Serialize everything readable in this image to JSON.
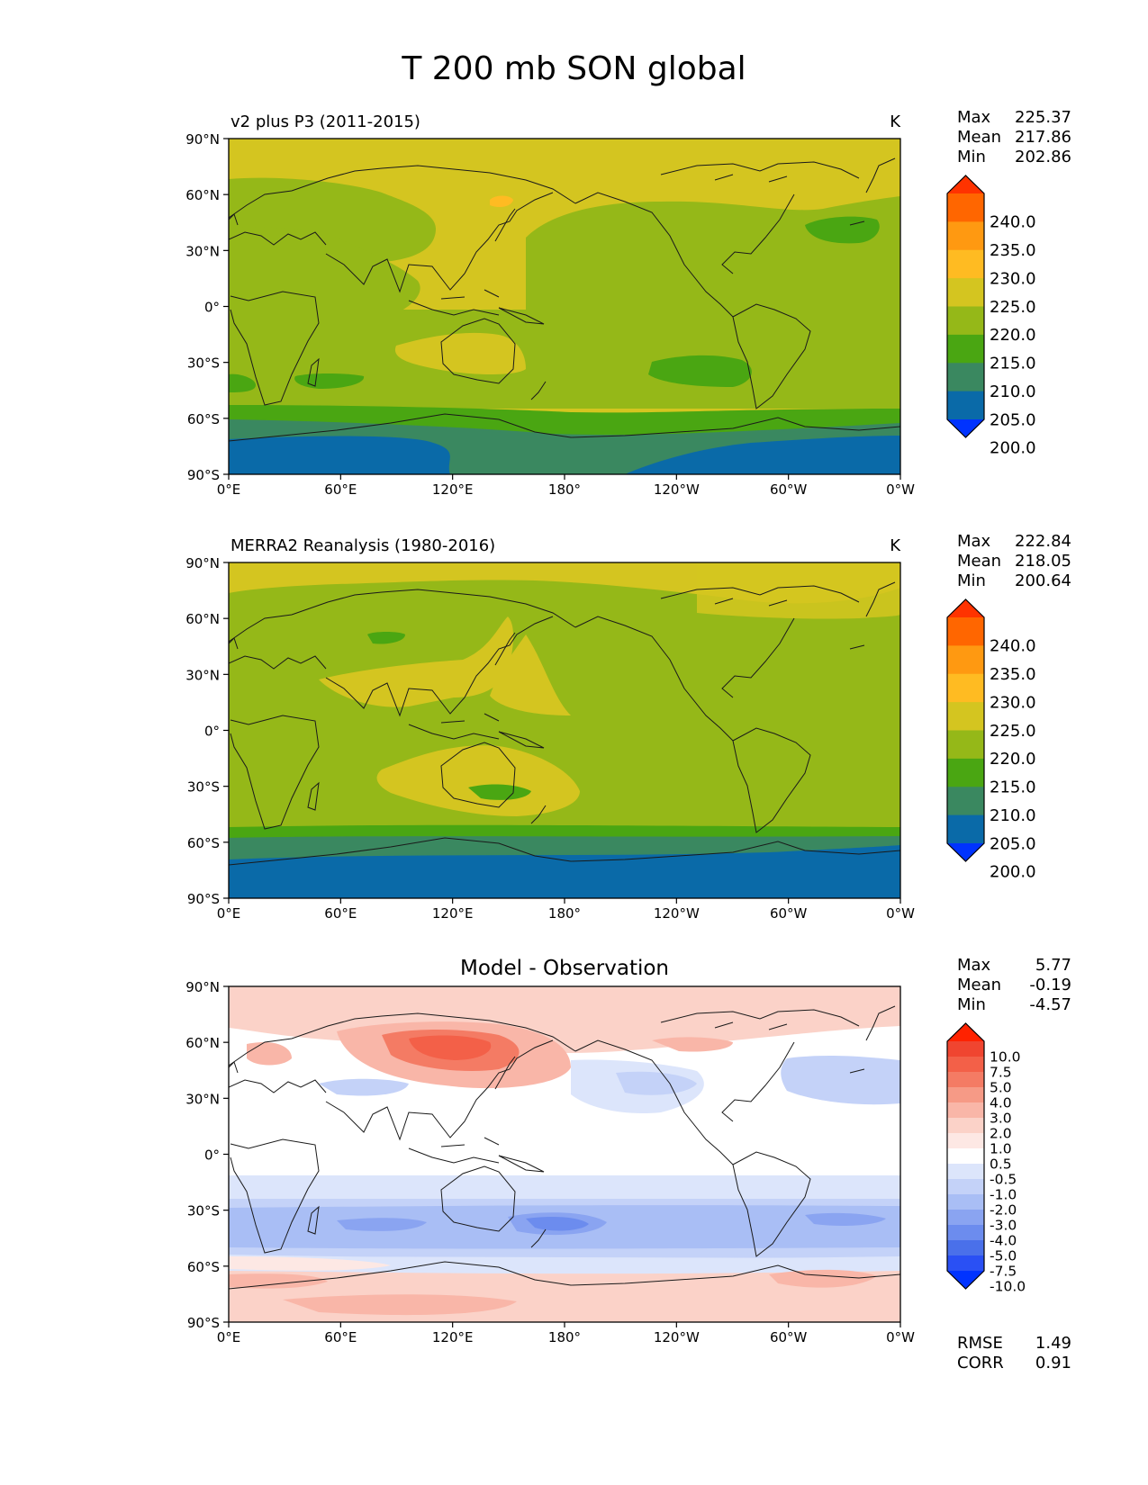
{
  "figure": {
    "title": "T 200 mb SON global"
  },
  "axes": {
    "lat_ticks": [
      "90°N",
      "60°N",
      "30°N",
      "0°",
      "30°S",
      "60°S",
      "90°S"
    ],
    "lon_ticks": [
      "0°E",
      "60°E",
      "120°E",
      "180°",
      "120°W",
      "60°W",
      "0°W"
    ]
  },
  "panels": [
    {
      "id": "model",
      "title_left": "v2 plus P3 (2011-2015)",
      "title_center": "",
      "units": "K",
      "stats": [
        {
          "label": "Max",
          "value": "225.37"
        },
        {
          "label": "Mean",
          "value": "217.86"
        },
        {
          "label": "Min",
          "value": "202.86"
        }
      ],
      "extra_stats": []
    },
    {
      "id": "obs",
      "title_left": "MERRA2 Reanalysis (1980-2016)",
      "title_center": "",
      "units": "K",
      "stats": [
        {
          "label": "Max",
          "value": "222.84"
        },
        {
          "label": "Mean",
          "value": "218.05"
        },
        {
          "label": "Min",
          "value": "200.64"
        }
      ],
      "extra_stats": []
    },
    {
      "id": "diff",
      "title_left": "",
      "title_center": "Model - Observation",
      "units": "",
      "stats": [
        {
          "label": "Max",
          "value": "5.77"
        },
        {
          "label": "Mean",
          "value": "-0.19"
        },
        {
          "label": "Min",
          "value": "-4.57"
        }
      ],
      "extra_stats": [
        {
          "label": "RMSE",
          "value": "1.49"
        },
        {
          "label": "CORR",
          "value": "0.91"
        }
      ]
    }
  ],
  "colorbars": {
    "abs": {
      "labels": [
        "240.0",
        "235.0",
        "230.0",
        "225.0",
        "220.0",
        "215.0",
        "210.0",
        "205.0",
        "200.0"
      ],
      "colors": [
        "#ff3300",
        "#ff6600",
        "#ff9911",
        "#ffbb22",
        "#d4c520",
        "#95b818",
        "#4aa612",
        "#3a8860",
        "#0a6aa8",
        "#0033ff"
      ]
    },
    "diff": {
      "labels": [
        "10.0",
        "7.5",
        "5.0",
        "4.0",
        "3.0",
        "2.0",
        "1.0",
        "0.5",
        "-0.5",
        "-1.0",
        "-2.0",
        "-3.0",
        "-4.0",
        "-5.0",
        "-7.5",
        "-10.0"
      ],
      "colors": [
        "#ff2200",
        "#f04530",
        "#f36048",
        "#f47b64",
        "#f69a86",
        "#f9b6a8",
        "#fbd2c8",
        "#fde8e4",
        "#ffffff",
        "#dce5fb",
        "#c4d2f8",
        "#a9bef5",
        "#8aa4f1",
        "#6c8cee",
        "#4a70ea",
        "#2a50f4",
        "#0033ff"
      ]
    }
  }
}
